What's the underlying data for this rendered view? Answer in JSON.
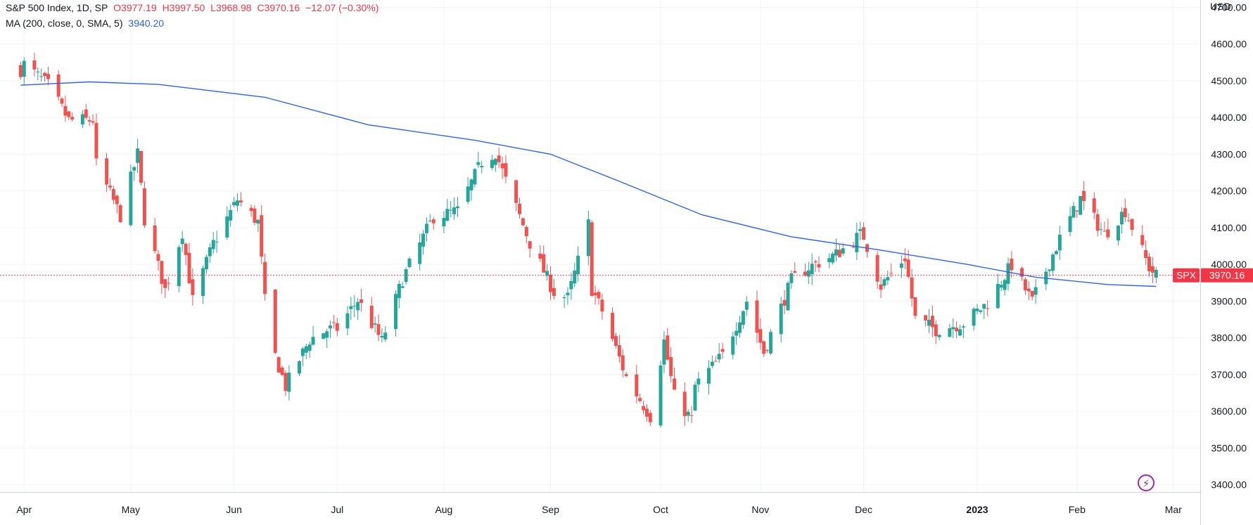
{
  "legend": {
    "symbol": "S&P 500 Index, 1D, SP",
    "open": "O3977.19",
    "high": "H3997.50",
    "low": "L3968.98",
    "close": "C3970.16",
    "change": "−12.07 (−0.30%)",
    "ma_label": "MA (200, close, 0, SMA, 5)",
    "ma_value": "3940.20"
  },
  "axis": {
    "currency": "USD",
    "price_tag_symbol": "SPX",
    "price_tag_value": "3970.16"
  },
  "colors": {
    "up": "#26a69a",
    "down": "#ef5350",
    "ma": "#2962ff",
    "last_price": "#f23645"
  },
  "chart_data": {
    "type": "candlestick",
    "ylim": [
      3380,
      4720
    ],
    "y_ticks": [
      "3400.00",
      "3500.00",
      "3600.00",
      "3700.00",
      "3800.00",
      "3900.00",
      "4000.00",
      "4100.00",
      "4200.00",
      "4300.00",
      "4400.00",
      "4500.00",
      "4600.00",
      "4700.00"
    ],
    "x_ticks": [
      "Apr",
      "May",
      "Jun",
      "Jul",
      "Aug",
      "Sep",
      "Oct",
      "Nov",
      "Dec",
      "2023",
      "Feb",
      "Mar"
    ],
    "last_price": 3970.16,
    "close_path": [
      [
        "2022-03-31",
        4530
      ],
      [
        "2022-04-01",
        4545
      ],
      [
        "2022-04-08",
        4488
      ],
      [
        "2022-04-14",
        4392
      ],
      [
        "2022-04-21",
        4393
      ],
      [
        "2022-04-22",
        4272
      ],
      [
        "2022-04-29",
        4132
      ],
      [
        "2022-05-04",
        4300
      ],
      [
        "2022-05-06",
        4123
      ],
      [
        "2022-05-12",
        3930
      ],
      [
        "2022-05-17",
        4088
      ],
      [
        "2022-05-20",
        3901
      ],
      [
        "2022-05-26",
        4057
      ],
      [
        "2022-06-02",
        4176
      ],
      [
        "2022-06-08",
        4115
      ],
      [
        "2022-06-10",
        3901
      ],
      [
        "2022-06-13",
        3750
      ],
      [
        "2022-06-16",
        3667
      ],
      [
        "2022-06-23",
        3795
      ],
      [
        "2022-06-28",
        3821
      ],
      [
        "2022-07-01",
        3825
      ],
      [
        "2022-07-07",
        3903
      ],
      [
        "2022-07-14",
        3790
      ],
      [
        "2022-07-20",
        3960
      ],
      [
        "2022-07-29",
        4130
      ],
      [
        "2022-08-05",
        4145
      ],
      [
        "2022-08-12",
        4280
      ],
      [
        "2022-08-16",
        4305
      ],
      [
        "2022-08-19",
        4228
      ],
      [
        "2022-08-26",
        4058
      ],
      [
        "2022-09-02",
        3924
      ],
      [
        "2022-09-06",
        3908
      ],
      [
        "2022-09-12",
        4110
      ],
      [
        "2022-09-13",
        3932
      ],
      [
        "2022-09-16",
        3873
      ],
      [
        "2022-09-23",
        3693
      ],
      [
        "2022-09-30",
        3586
      ],
      [
        "2022-10-04",
        3791
      ],
      [
        "2022-10-07",
        3640
      ],
      [
        "2022-10-12",
        3577
      ],
      [
        "2022-10-13",
        3669
      ],
      [
        "2022-10-21",
        3752
      ],
      [
        "2022-10-28",
        3901
      ],
      [
        "2022-11-02",
        3760
      ],
      [
        "2022-11-10",
        3956
      ],
      [
        "2022-11-15",
        3992
      ],
      [
        "2022-11-23",
        4027
      ],
      [
        "2022-11-30",
        4080
      ],
      [
        "2022-12-01",
        4076
      ],
      [
        "2022-12-06",
        3941
      ],
      [
        "2022-12-13",
        4019
      ],
      [
        "2022-12-16",
        3852
      ],
      [
        "2022-12-22",
        3822
      ],
      [
        "2022-12-30",
        3840
      ],
      [
        "2023-01-06",
        3895
      ],
      [
        "2023-01-13",
        3999
      ],
      [
        "2023-01-19",
        3898
      ],
      [
        "2023-01-27",
        4070
      ],
      [
        "2023-02-02",
        4179
      ],
      [
        "2023-02-09",
        4081
      ],
      [
        "2023-02-15",
        4147
      ],
      [
        "2023-02-22",
        3991
      ],
      [
        "2023-02-24",
        3970
      ]
    ],
    "series": [
      {
        "name": "MA (200, close, 0, SMA, 5)",
        "points": [
          [
            "2022-03-31",
            4488
          ],
          [
            "2022-04-20",
            4497
          ],
          [
            "2022-05-10",
            4490
          ],
          [
            "2022-06-10",
            4455
          ],
          [
            "2022-07-10",
            4380
          ],
          [
            "2022-08-10",
            4338
          ],
          [
            "2022-09-01",
            4300
          ],
          [
            "2022-09-20",
            4230
          ],
          [
            "2022-10-15",
            4135
          ],
          [
            "2022-11-10",
            4075
          ],
          [
            "2022-12-05",
            4040
          ],
          [
            "2022-12-31",
            4000
          ],
          [
            "2023-01-20",
            3965
          ],
          [
            "2023-02-10",
            3945
          ],
          [
            "2023-02-24",
            3940
          ]
        ]
      }
    ]
  }
}
